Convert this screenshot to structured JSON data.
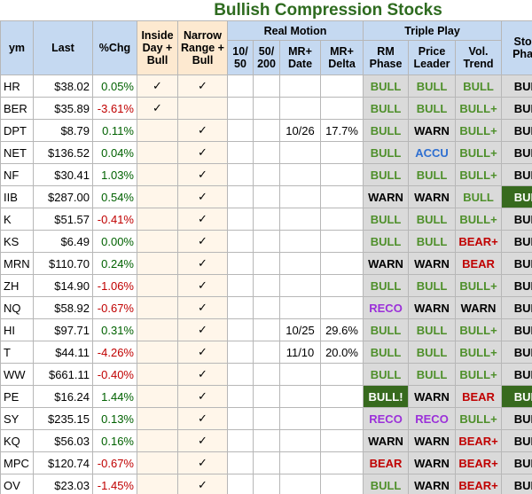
{
  "title": "Bullish Compression Stocks",
  "table": {
    "group_headers": [
      "Real Motion",
      "Triple Play"
    ],
    "columns": [
      "ym",
      "Last",
      "%Chg",
      "Inside Day + Bull",
      "Narrow Range + Bull",
      "10/ 50",
      "50/ 200",
      "MR+ Date",
      "MR+ Delta",
      "RM Phase",
      "Price Leader",
      "Vol. Trend",
      "Stoc Phas"
    ],
    "rows": [
      [
        "HR",
        "$38.02",
        "0.05%",
        "✓",
        "✓",
        null,
        null,
        null,
        null,
        "BULL",
        "BULL",
        "BULL",
        "BUL"
      ],
      [
        "BER",
        "$35.89",
        "-3.61%",
        "✓",
        null,
        null,
        null,
        null,
        null,
        "BULL",
        "BULL",
        "BULL+",
        "BUL"
      ],
      [
        "DPT",
        "$8.79",
        "0.11%",
        null,
        "✓",
        null,
        null,
        "10/26",
        "17.7%",
        "BULL",
        "WARN",
        "BULL+",
        "BUL"
      ],
      [
        "NET",
        "$136.52",
        "0.04%",
        null,
        "✓",
        null,
        null,
        null,
        null,
        "BULL",
        "ACCU",
        "BULL+",
        "BUL"
      ],
      [
        "NF",
        "$30.41",
        "1.03%",
        null,
        "✓",
        null,
        null,
        null,
        null,
        "BULL",
        "BULL",
        "BULL+",
        "BUL"
      ],
      [
        "IIB",
        "$287.00",
        "0.54%",
        null,
        "✓",
        null,
        null,
        null,
        null,
        "WARN",
        "WARN",
        "BULL",
        "BUL"
      ],
      [
        "K",
        "$51.57",
        "-0.41%",
        null,
        "✓",
        null,
        null,
        null,
        null,
        "BULL",
        "BULL",
        "BULL+",
        "BUL"
      ],
      [
        "KS",
        "$6.49",
        "0.00%",
        null,
        "✓",
        null,
        null,
        null,
        null,
        "BULL",
        "BULL",
        "BEAR+",
        "BUL"
      ],
      [
        "MRN",
        "$110.70",
        "0.24%",
        null,
        "✓",
        null,
        null,
        null,
        null,
        "WARN",
        "WARN",
        "BEAR",
        "BUL"
      ],
      [
        "ZH",
        "$14.90",
        "-1.06%",
        null,
        "✓",
        null,
        null,
        null,
        null,
        "BULL",
        "BULL",
        "BULL+",
        "BUL"
      ],
      [
        "NQ",
        "$58.92",
        "-0.67%",
        null,
        "✓",
        null,
        null,
        null,
        null,
        "RECO",
        "WARN",
        "WARN",
        "BUL"
      ],
      [
        "HI",
        "$97.71",
        "0.31%",
        null,
        "✓",
        null,
        null,
        "10/25",
        "29.6%",
        "BULL",
        "BULL",
        "BULL+",
        "BUL"
      ],
      [
        "T",
        "$44.11",
        "-4.26%",
        null,
        "✓",
        null,
        null,
        "11/10",
        "20.0%",
        "BULL",
        "BULL",
        "BULL+",
        "BUL"
      ],
      [
        "WW",
        "$661.11",
        "-0.40%",
        null,
        "✓",
        null,
        null,
        null,
        null,
        "BULL",
        "BULL",
        "BULL+",
        "BUL"
      ],
      [
        "PE",
        "$16.24",
        "1.44%",
        null,
        "✓",
        null,
        null,
        null,
        null,
        "BULL!",
        "WARN",
        "BEAR",
        "BUL"
      ],
      [
        "SY",
        "$235.15",
        "0.13%",
        null,
        "✓",
        null,
        null,
        null,
        null,
        "RECO",
        "RECO",
        "BULL+",
        "BUL"
      ],
      [
        "KQ",
        "$56.03",
        "0.16%",
        null,
        "✓",
        null,
        null,
        null,
        null,
        "WARN",
        "WARN",
        "BEAR+",
        "BUL"
      ],
      [
        "MPC",
        "$120.74",
        "-0.67%",
        null,
        "✓",
        null,
        null,
        null,
        null,
        "BEAR",
        "WARN",
        "BEAR+",
        "BUL"
      ],
      [
        "OV",
        "$23.03",
        "-1.45%",
        null,
        "✓",
        null,
        null,
        null,
        null,
        "BULL",
        "WARN",
        "BEAR+",
        "BUL"
      ]
    ]
  }
}
